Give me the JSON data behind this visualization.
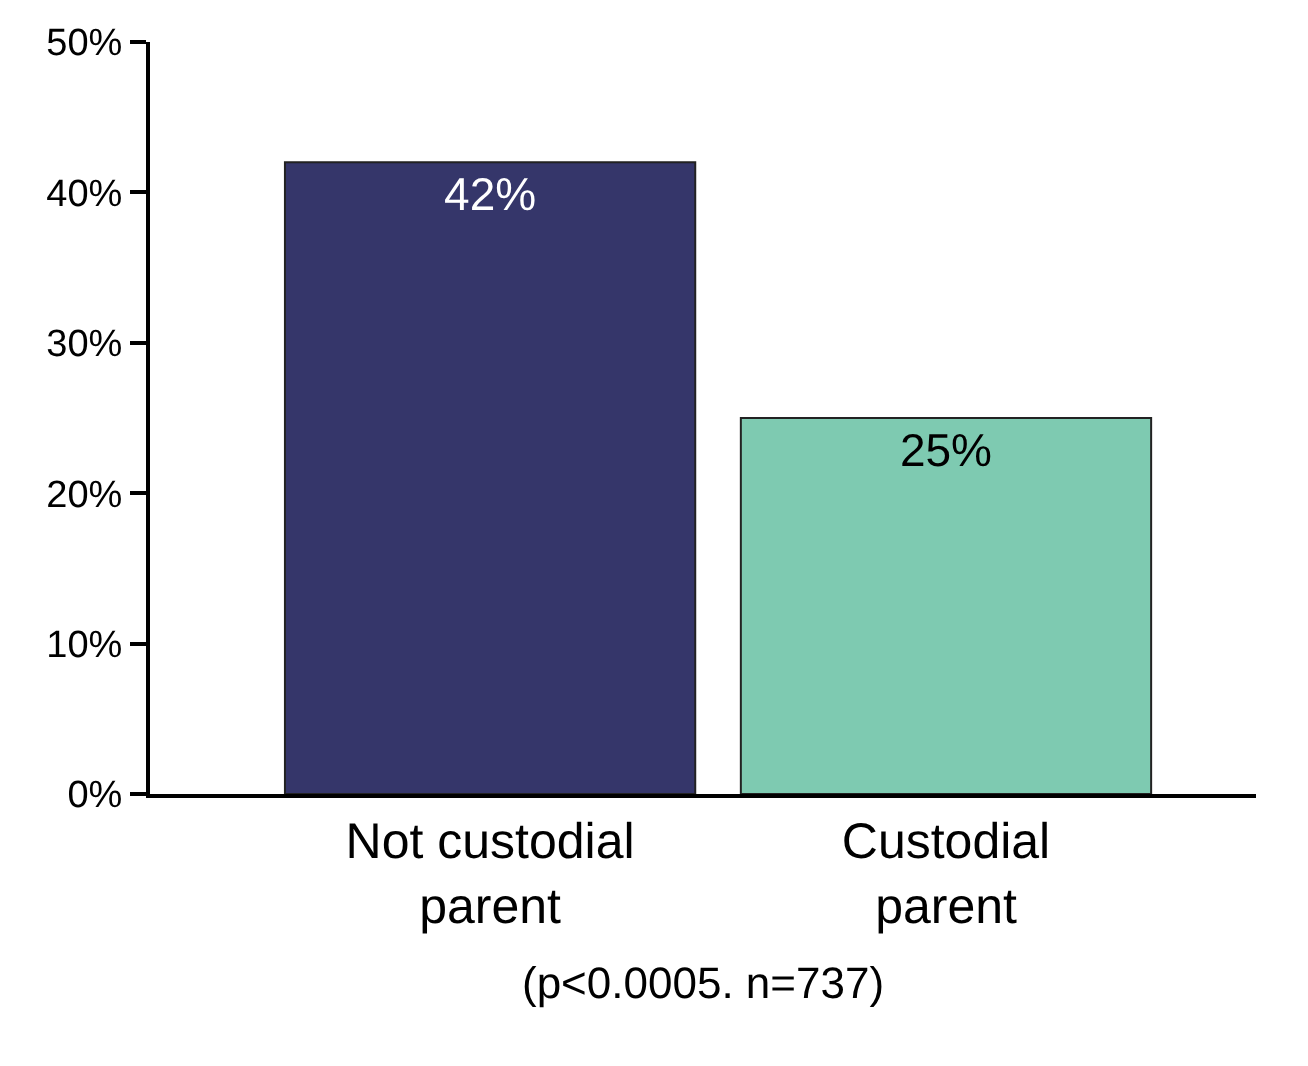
{
  "chart_data": {
    "type": "bar",
    "categories": [
      "Not custodial parent",
      "Custodial parent"
    ],
    "values": [
      42,
      25
    ],
    "colors": [
      "#35366a",
      "#7ecab1"
    ],
    "value_labels": [
      "42%",
      "25%"
    ],
    "ylim": [
      0,
      50
    ],
    "yticks": [
      {
        "value": 0,
        "label": "0%"
      },
      {
        "value": 10,
        "label": "10%"
      },
      {
        "value": 20,
        "label": "20%"
      },
      {
        "value": 30,
        "label": "30%"
      },
      {
        "value": 40,
        "label": "40%"
      },
      {
        "value": 50,
        "label": "50%"
      }
    ],
    "annotations": [
      "(p<0.0005. n=737)"
    ]
  }
}
